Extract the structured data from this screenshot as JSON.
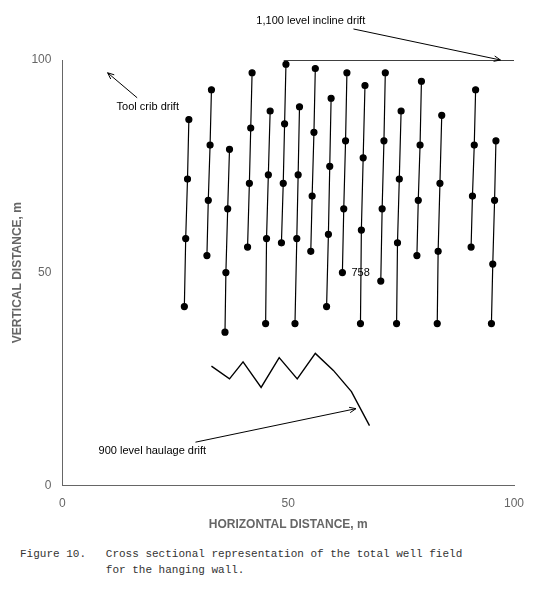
{
  "chart_data": {
    "type": "line",
    "xlabel": "HORIZONTAL DISTANCE, m",
    "ylabel": "VERTICAL DISTANCE, m",
    "xlim": [
      0,
      100
    ],
    "ylim": [
      0,
      100
    ],
    "xticks": [
      0,
      50,
      100
    ],
    "yticks": [
      0,
      50,
      100
    ],
    "grid": false,
    "color": "#000000",
    "series": [
      {
        "x": [
          28.0,
          27.7,
          27.3,
          27.0
        ],
        "values": [
          86,
          72,
          58,
          42
        ],
        "marker": "circle"
      },
      {
        "x": [
          33.0,
          32.7,
          32.3,
          32.0
        ],
        "values": [
          93,
          80,
          67,
          54
        ],
        "marker": "circle"
      },
      {
        "x": [
          37.0,
          36.6,
          36.2,
          36.0
        ],
        "values": [
          79,
          65,
          50,
          36
        ],
        "marker": "circle"
      },
      {
        "x": [
          42.0,
          41.7,
          41.4,
          41.0
        ],
        "values": [
          97,
          84,
          71,
          56
        ],
        "marker": "circle"
      },
      {
        "x": [
          46.0,
          45.6,
          45.2,
          45.0
        ],
        "values": [
          88,
          73,
          58,
          38
        ],
        "marker": "circle"
      },
      {
        "x": [
          49.5,
          49.2,
          48.9,
          48.5
        ],
        "values": [
          99,
          85,
          71,
          57
        ],
        "marker": "circle"
      },
      {
        "x": [
          52.5,
          52.2,
          51.9,
          51.5
        ],
        "values": [
          89,
          73,
          58,
          38
        ],
        "marker": "circle"
      },
      {
        "x": [
          56.0,
          55.7,
          55.3,
          55.0
        ],
        "values": [
          98,
          83,
          68,
          55
        ],
        "marker": "circle"
      },
      {
        "x": [
          59.5,
          59.2,
          58.9,
          58.5
        ],
        "values": [
          91,
          75,
          59,
          42
        ],
        "marker": "circle"
      },
      {
        "x": [
          63.0,
          62.7,
          62.3,
          62.0
        ],
        "values": [
          97,
          81,
          65,
          50
        ],
        "marker": "circle"
      },
      {
        "x": [
          67.0,
          66.6,
          66.2,
          66.0
        ],
        "values": [
          94,
          77,
          60,
          38
        ],
        "marker": "circle"
      },
      {
        "x": [
          71.5,
          71.2,
          70.8,
          70.5
        ],
        "values": [
          97,
          81,
          65,
          48
        ],
        "marker": "circle"
      },
      {
        "x": [
          75.0,
          74.6,
          74.2,
          74.0
        ],
        "values": [
          88,
          72,
          57,
          38
        ],
        "marker": "circle"
      },
      {
        "x": [
          79.5,
          79.2,
          78.8,
          78.5
        ],
        "values": [
          95,
          80,
          67,
          54
        ],
        "marker": "circle"
      },
      {
        "x": [
          84.0,
          83.6,
          83.2,
          83.0
        ],
        "values": [
          87,
          71,
          55,
          38
        ],
        "marker": "circle"
      },
      {
        "x": [
          91.5,
          91.2,
          90.8,
          90.5
        ],
        "values": [
          93,
          80,
          68,
          56
        ],
        "marker": "circle"
      },
      {
        "x": [
          96.0,
          95.7,
          95.3,
          95.0
        ],
        "values": [
          81,
          67,
          52,
          38
        ],
        "marker": "circle"
      },
      {
        "x": [
          33,
          37,
          40,
          44,
          48,
          52,
          56,
          60,
          64,
          68
        ],
        "values": [
          28,
          25,
          29,
          23,
          30,
          25,
          31,
          27,
          22,
          14
        ],
        "marker": "none"
      },
      {
        "x": [
          49,
          100
        ],
        "values": [
          100,
          100
        ],
        "marker": "none"
      }
    ],
    "annotations": [
      {
        "text": "1,100 level incline drift",
        "xy": [
          97,
          100
        ],
        "xytext": [
          55,
          108
        ]
      },
      {
        "text": "Tool crib drift",
        "xy": [
          10,
          97
        ],
        "xytext": [
          12,
          89
        ]
      },
      {
        "text": "900 level haulage drift",
        "xy": [
          65,
          18
        ],
        "xytext": [
          8,
          8
        ]
      },
      {
        "text": "758",
        "xytext": [
          64,
          50
        ]
      }
    ],
    "caption": [
      "Figure 10.   Cross sectional representation of the total well field",
      "             for the hanging wall."
    ]
  }
}
